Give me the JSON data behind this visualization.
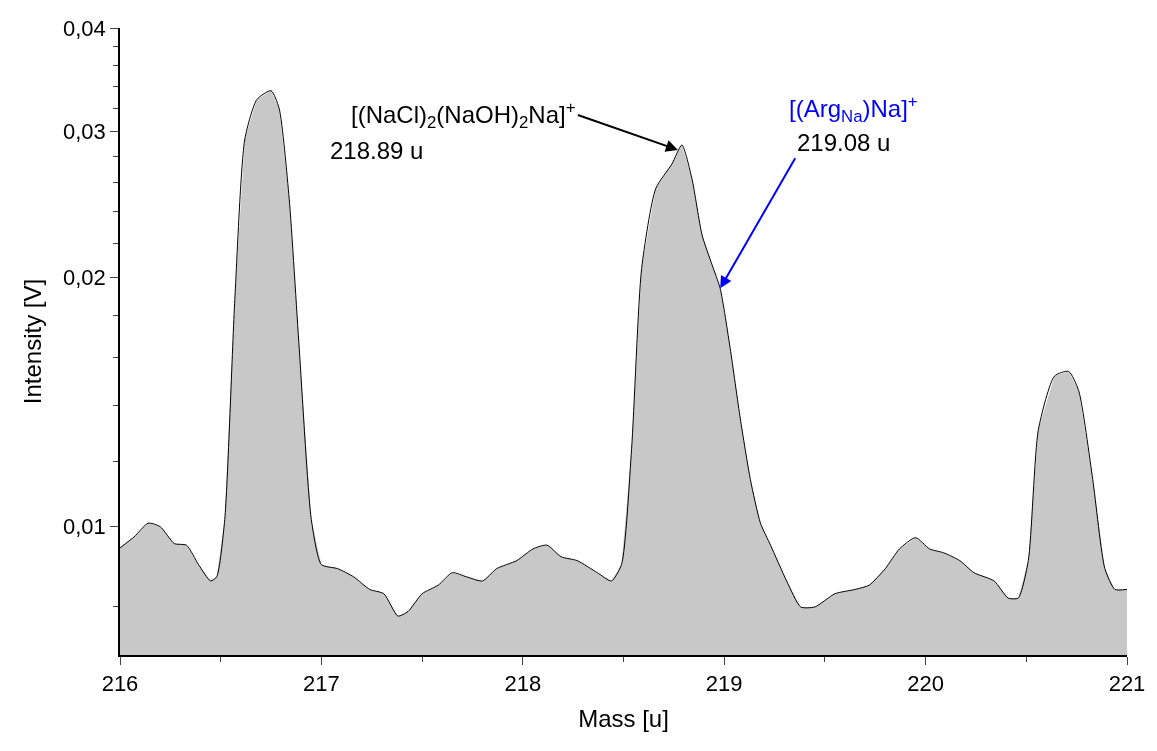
{
  "chart_data": {
    "type": "area",
    "xlabel": "Mass [u]",
    "ylabel": "Intensity [V]",
    "log": "y",
    "xlim": [
      216,
      221
    ],
    "xticks": [
      216,
      217,
      218,
      219,
      220,
      221
    ],
    "ylim": [
      0.007,
      0.04
    ],
    "yticks": [
      {
        "value": 0.01,
        "label": "0,01"
      },
      {
        "value": 0.02,
        "label": "0,02"
      },
      {
        "value": 0.03,
        "label": "0,03"
      },
      {
        "value": 0.04,
        "label": "0,04"
      }
    ],
    "annotations": [
      {
        "text": "[(NaCl)$_{2}$(NaOH)$_{2}$Na]$^{+}$",
        "x": 218.77,
        "y": 0.0285
      },
      "218.89 u",
      "[(Arg$_{Na}$)Na]$^{+}$",
      {
        "text": "219.08 u",
        "x": 218.98,
        "y": 0.0194
      }
    ],
    "series": [
      {
        "color": "#c8c8c8",
        "x": [
          216.0,
          216.07,
          216.14,
          216.2,
          216.27,
          216.33,
          216.39,
          216.45,
          216.48,
          216.52,
          216.57,
          216.62,
          216.68,
          216.75,
          216.79,
          216.84,
          216.89,
          216.95,
          217.0,
          217.08,
          217.16,
          217.24,
          217.31,
          217.38,
          217.43,
          217.5,
          217.58,
          217.65,
          217.72,
          217.8,
          217.87,
          217.97,
          218.05,
          218.12,
          218.19,
          218.27,
          218.37,
          218.44,
          218.49,
          218.54,
          218.59,
          218.66,
          218.74,
          218.79,
          218.84,
          218.89,
          218.94,
          218.98,
          219.03,
          219.08,
          219.13,
          219.18,
          219.23,
          219.31,
          219.38,
          219.45,
          219.55,
          219.65,
          219.72,
          219.8,
          219.87,
          219.95,
          220.02,
          220.09,
          220.17,
          220.24,
          220.34,
          220.41,
          220.46,
          220.51,
          220.56,
          220.64,
          220.71,
          220.76,
          220.83,
          220.89,
          220.94,
          221.0
        ],
        "values": [
          0.00943,
          0.00972,
          0.0101,
          0.01,
          0.00954,
          0.0095,
          0.009,
          0.0086,
          0.0087,
          0.0102,
          0.0188,
          0.0294,
          0.0328,
          0.0336,
          0.032,
          0.0249,
          0.0164,
          0.0102,
          0.009,
          0.0089,
          0.0087,
          0.0084,
          0.0083,
          0.0078,
          0.0079,
          0.0083,
          0.0085,
          0.0088,
          0.0087,
          0.0086,
          0.0089,
          0.0091,
          0.0094,
          0.0095,
          0.0092,
          0.0091,
          0.0088,
          0.0086,
          0.009,
          0.0124,
          0.0205,
          0.0256,
          0.0274,
          0.0289,
          0.0263,
          0.0225,
          0.0207,
          0.0194,
          0.0164,
          0.0135,
          0.0114,
          0.0101,
          0.0095,
          0.0086,
          0.008,
          0.008,
          0.0083,
          0.0084,
          0.0085,
          0.0089,
          0.0094,
          0.0097,
          0.0094,
          0.0093,
          0.0091,
          0.0088,
          0.0086,
          0.0082,
          0.0082,
          0.0091,
          0.0131,
          0.0152,
          0.0154,
          0.0146,
          0.0114,
          0.0089,
          0.0084,
          0.0084
        ]
      }
    ]
  }
}
